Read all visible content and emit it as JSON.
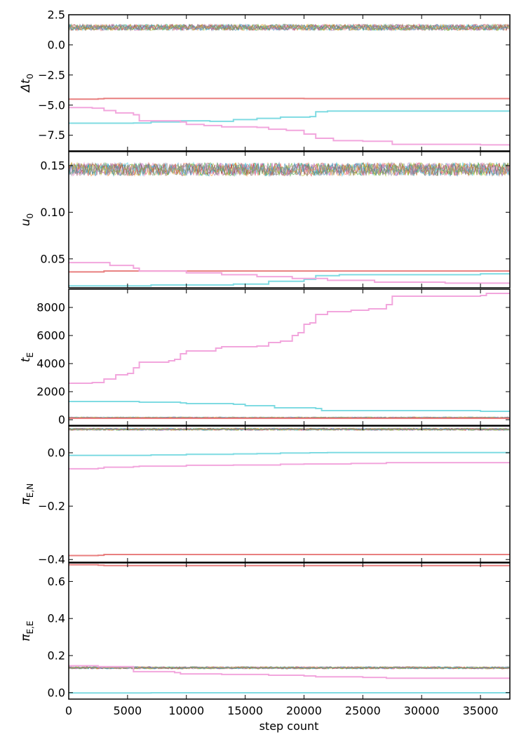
{
  "chart_data": {
    "type": "line",
    "xlabel": "step count",
    "xlim": [
      0,
      37500
    ],
    "xticks": [
      0,
      5000,
      10000,
      15000,
      20000,
      25000,
      30000,
      35000
    ],
    "xtick_labels": [
      "0",
      "5000",
      "10000",
      "15000",
      "20000",
      "25000",
      "30000",
      "35000"
    ],
    "grid": false,
    "legend": "none",
    "colors": {
      "walker_band": [
        "#1f77b4",
        "#ff7f0e",
        "#2ca02c",
        "#d62728",
        "#9467bd",
        "#8c564b",
        "#e377c2",
        "#17becf",
        "#bcbd22",
        "#7f7f7f"
      ],
      "stuck_red": "#e87f7f",
      "stuck_cyan": "#7fdbe2",
      "stuck_pink": "#f2a6dd"
    },
    "panels": [
      {
        "ylabel": "Δt0",
        "ylabel_main": "Δt",
        "ylabel_sub": "0",
        "ylim": [
          -8.8,
          2.5
        ],
        "yticks": [
          2.5,
          0.0,
          -2.5,
          -5.0,
          -7.5
        ],
        "ytick_labels": [
          "2.5",
          "0.0",
          "−2.5",
          "−5.0",
          "−7.5"
        ],
        "band": {
          "center": 1.45,
          "spread": 0.25
        },
        "series": [
          {
            "color": "stuck_red",
            "points": [
              [
                0,
                -4.5
              ],
              [
                2500,
                -4.48
              ],
              [
                3000,
                -4.45
              ],
              [
                10000,
                -4.45
              ],
              [
                20000,
                -4.46
              ],
              [
                37500,
                -4.45
              ]
            ]
          },
          {
            "color": "stuck_cyan",
            "points": [
              [
                0,
                -6.5
              ],
              [
                5500,
                -6.48
              ],
              [
                7000,
                -6.4
              ],
              [
                9500,
                -6.3
              ],
              [
                12000,
                -6.35
              ],
              [
                14000,
                -6.2
              ],
              [
                16000,
                -6.1
              ],
              [
                18000,
                -6.0
              ],
              [
                20500,
                -5.95
              ],
              [
                21000,
                -5.55
              ],
              [
                22000,
                -5.5
              ],
              [
                35000,
                -5.5
              ],
              [
                37500,
                -5.4
              ]
            ]
          },
          {
            "color": "stuck_pink",
            "points": [
              [
                0,
                -5.2
              ],
              [
                2000,
                -5.25
              ],
              [
                3000,
                -5.45
              ],
              [
                4000,
                -5.65
              ],
              [
                5500,
                -5.8
              ],
              [
                6000,
                -6.3
              ],
              [
                9500,
                -6.4
              ],
              [
                10000,
                -6.6
              ],
              [
                11500,
                -6.7
              ],
              [
                13000,
                -6.8
              ],
              [
                16000,
                -6.85
              ],
              [
                17000,
                -7.0
              ],
              [
                18500,
                -7.1
              ],
              [
                20000,
                -7.4
              ],
              [
                21000,
                -7.75
              ],
              [
                22500,
                -7.95
              ],
              [
                25000,
                -8.0
              ],
              [
                27500,
                -8.25
              ],
              [
                35000,
                -8.3
              ],
              [
                37500,
                -8.4
              ]
            ]
          }
        ]
      },
      {
        "ylabel": "u0",
        "ylabel_main": "u",
        "ylabel_sub": "0",
        "ylim": [
          0.019,
          0.165
        ],
        "yticks": [
          0.15,
          0.1,
          0.05
        ],
        "ytick_labels": [
          "0.15",
          "0.10",
          "0.05"
        ],
        "band": {
          "center": 0.146,
          "spread": 0.007
        },
        "series": [
          {
            "color": "stuck_red",
            "points": [
              [
                0,
                0.036
              ],
              [
                2500,
                0.036
              ],
              [
                3000,
                0.037
              ],
              [
                37500,
                0.037
              ]
            ]
          },
          {
            "color": "stuck_cyan",
            "points": [
              [
                0,
                0.021
              ],
              [
                5500,
                0.021
              ],
              [
                7000,
                0.022
              ],
              [
                11000,
                0.022
              ],
              [
                14000,
                0.023
              ],
              [
                17000,
                0.026
              ],
              [
                20000,
                0.028
              ],
              [
                21000,
                0.032
              ],
              [
                23000,
                0.033
              ],
              [
                35000,
                0.034
              ],
              [
                37500,
                0.034
              ]
            ]
          },
          {
            "color": "stuck_pink",
            "points": [
              [
                0,
                0.046
              ],
              [
                2500,
                0.046
              ],
              [
                3500,
                0.043
              ],
              [
                5500,
                0.04
              ],
              [
                6000,
                0.037
              ],
              [
                10000,
                0.035
              ],
              [
                13000,
                0.033
              ],
              [
                16000,
                0.031
              ],
              [
                19000,
                0.029
              ],
              [
                22000,
                0.027
              ],
              [
                26000,
                0.025
              ],
              [
                32000,
                0.024
              ],
              [
                37500,
                0.023
              ]
            ]
          }
        ]
      },
      {
        "ylabel": "tE",
        "ylabel_main": "t",
        "ylabel_sub": "E",
        "ylim": [
          -400,
          9300
        ],
        "yticks": [
          8000,
          6000,
          4000,
          2000,
          0
        ],
        "ytick_labels": [
          "8000",
          "6000",
          "4000",
          "2000",
          "0"
        ],
        "band": {
          "center": 150,
          "spread": 40
        },
        "series": [
          {
            "color": "stuck_red",
            "points": [
              [
                0,
                100
              ],
              [
                37500,
                100
              ]
            ]
          },
          {
            "color": "stuck_cyan",
            "points": [
              [
                0,
                1300
              ],
              [
                6000,
                1250
              ],
              [
                9500,
                1200
              ],
              [
                10000,
                1150
              ],
              [
                14000,
                1100
              ],
              [
                15000,
                1000
              ],
              [
                17500,
                850
              ],
              [
                21000,
                800
              ],
              [
                21500,
                650
              ],
              [
                27000,
                650
              ],
              [
                35000,
                600
              ],
              [
                37500,
                600
              ]
            ]
          },
          {
            "color": "stuck_pink",
            "points": [
              [
                0,
                2600
              ],
              [
                2000,
                2650
              ],
              [
                3000,
                2900
              ],
              [
                4000,
                3200
              ],
              [
                5000,
                3300
              ],
              [
                5500,
                3700
              ],
              [
                6000,
                4100
              ],
              [
                8500,
                4200
              ],
              [
                9000,
                4300
              ],
              [
                9500,
                4700
              ],
              [
                10000,
                4900
              ],
              [
                12000,
                4900
              ],
              [
                12500,
                5100
              ],
              [
                13000,
                5200
              ],
              [
                16000,
                5250
              ],
              [
                17000,
                5500
              ],
              [
                18000,
                5600
              ],
              [
                19000,
                6000
              ],
              [
                19500,
                6200
              ],
              [
                20000,
                6800
              ],
              [
                20500,
                6900
              ],
              [
                21000,
                7500
              ],
              [
                22000,
                7700
              ],
              [
                24000,
                7800
              ],
              [
                25500,
                7900
              ],
              [
                27000,
                8200
              ],
              [
                27500,
                8800
              ],
              [
                35000,
                8850
              ],
              [
                35500,
                9000
              ],
              [
                37500,
                9000
              ]
            ]
          }
        ]
      },
      {
        "ylabel": "πE,N",
        "ylabel_main": "π",
        "ylabel_sub": "E,N",
        "ylim": [
          -0.41,
          0.1
        ],
        "yticks": [
          0.0,
          -0.2,
          -0.4
        ],
        "ytick_labels": [
          "0.0",
          "−0.2",
          "−0.4"
        ],
        "band": {
          "center": 0.088,
          "spread": 0.004
        },
        "series": [
          {
            "color": "stuck_red",
            "points": [
              [
                0,
                -0.385
              ],
              [
                2500,
                -0.384
              ],
              [
                3000,
                -0.381
              ],
              [
                37500,
                -0.381
              ]
            ]
          },
          {
            "color": "stuck_cyan",
            "points": [
              [
                0,
                -0.01
              ],
              [
                5500,
                -0.01
              ],
              [
                7000,
                -0.008
              ],
              [
                10000,
                -0.006
              ],
              [
                14000,
                -0.004
              ],
              [
                16000,
                -0.003
              ],
              [
                18000,
                -0.001
              ],
              [
                20500,
                0.0
              ],
              [
                22000,
                0.001
              ],
              [
                37500,
                0.001
              ]
            ]
          },
          {
            "color": "stuck_pink",
            "points": [
              [
                0,
                -0.06
              ],
              [
                2500,
                -0.058
              ],
              [
                3000,
                -0.054
              ],
              [
                5500,
                -0.052
              ],
              [
                6000,
                -0.05
              ],
              [
                10000,
                -0.047
              ],
              [
                14000,
                -0.046
              ],
              [
                18000,
                -0.043
              ],
              [
                20000,
                -0.042
              ],
              [
                24000,
                -0.04
              ],
              [
                27000,
                -0.037
              ],
              [
                37500,
                -0.036
              ]
            ]
          }
        ]
      },
      {
        "ylabel": "πE,E",
        "ylabel_main": "π",
        "ylabel_sub": "E,E",
        "ylim": [
          -0.035,
          0.7
        ],
        "yticks": [
          0.6,
          0.4,
          0.2,
          0.0
        ],
        "ytick_labels": [
          "0.6",
          "0.4",
          "0.2",
          "0.0"
        ],
        "band": {
          "center": 0.134,
          "spread": 0.006
        },
        "series": [
          {
            "color": "stuck_red",
            "points": [
              [
                0,
                0.69
              ],
              [
                2500,
                0.688
              ],
              [
                3000,
                0.686
              ],
              [
                37500,
                0.686
              ]
            ]
          },
          {
            "color": "stuck_cyan",
            "points": [
              [
                0,
                -0.002
              ],
              [
                5500,
                -0.002
              ],
              [
                7000,
                -0.001
              ],
              [
                37500,
                0.001
              ]
            ]
          },
          {
            "color": "stuck_pink",
            "points": [
              [
                0,
                0.145
              ],
              [
                2500,
                0.14
              ],
              [
                5500,
                0.113
              ],
              [
                9000,
                0.108
              ],
              [
                9500,
                0.101
              ],
              [
                13000,
                0.098
              ],
              [
                17000,
                0.094
              ],
              [
                20000,
                0.09
              ],
              [
                21000,
                0.085
              ],
              [
                25000,
                0.082
              ],
              [
                27000,
                0.078
              ],
              [
                37500,
                0.074
              ]
            ]
          }
        ]
      }
    ]
  }
}
